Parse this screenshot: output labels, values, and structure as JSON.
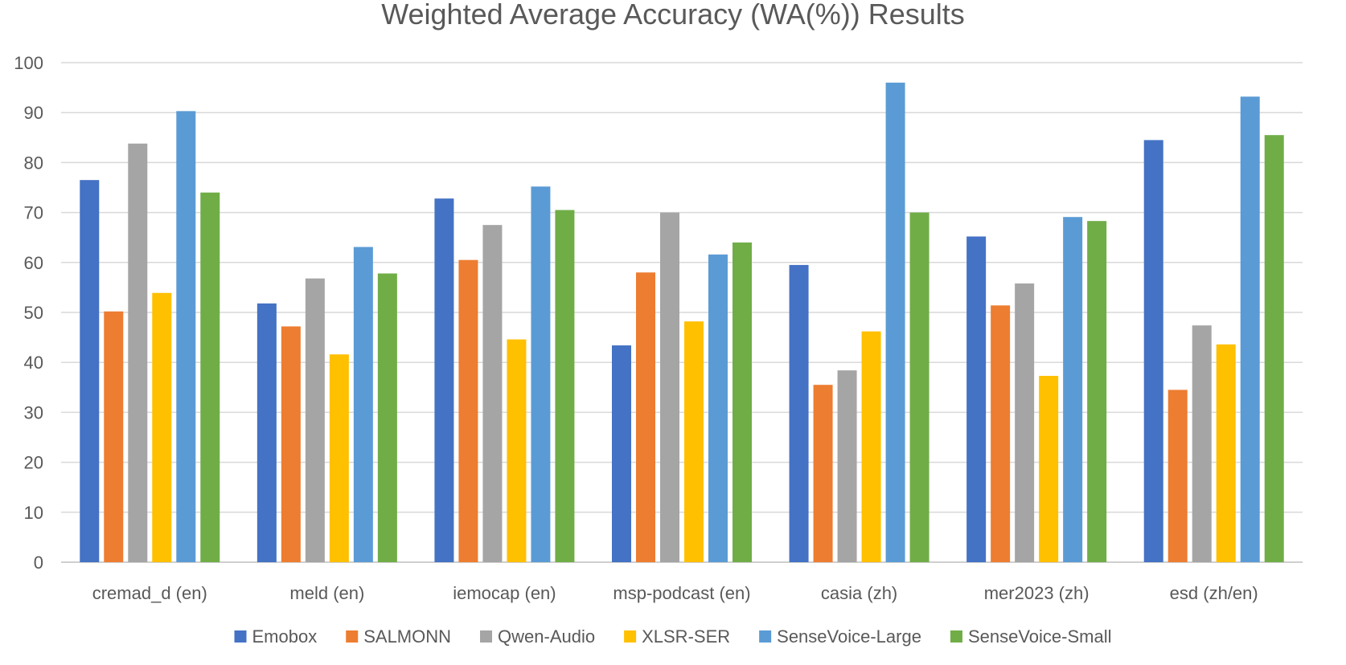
{
  "chart_data": {
    "type": "bar",
    "title": "Weighted Average Accuracy (WA(%)) Results",
    "xlabel": "",
    "ylabel": "",
    "ylim": [
      0,
      100
    ],
    "yticks": [
      0,
      10,
      20,
      30,
      40,
      50,
      60,
      70,
      80,
      90,
      100
    ],
    "grid": true,
    "legend_position": "bottom",
    "categories": [
      "cremad_d (en)",
      "meld (en)",
      "iemocap (en)",
      "msp-podcast (en)",
      "casia (zh)",
      "mer2023 (zh)",
      "esd  (zh/en)"
    ],
    "series": [
      {
        "name": "Emobox",
        "color": "#4472C4",
        "values": [
          76.5,
          51.8,
          72.8,
          43.4,
          59.5,
          65.2,
          84.5
        ]
      },
      {
        "name": "SALMONN",
        "color": "#ED7D31",
        "values": [
          50.2,
          47.2,
          60.5,
          58.0,
          35.5,
          51.4,
          34.5
        ]
      },
      {
        "name": "Qwen-Audio",
        "color": "#A5A5A5",
        "values": [
          83.8,
          56.8,
          67.5,
          70.0,
          38.4,
          55.8,
          47.4
        ]
      },
      {
        "name": "XLSR-SER",
        "color": "#FFC000",
        "values": [
          53.9,
          41.6,
          44.6,
          48.2,
          46.2,
          37.3,
          43.6
        ]
      },
      {
        "name": "SenseVoice-Large",
        "color": "#5B9BD5",
        "values": [
          90.3,
          63.1,
          75.2,
          61.6,
          96.0,
          69.1,
          93.2
        ]
      },
      {
        "name": "SenseVoice-Small",
        "color": "#70AD47",
        "values": [
          74.0,
          57.8,
          70.5,
          64.0,
          70.0,
          68.3,
          85.5
        ]
      }
    ]
  }
}
